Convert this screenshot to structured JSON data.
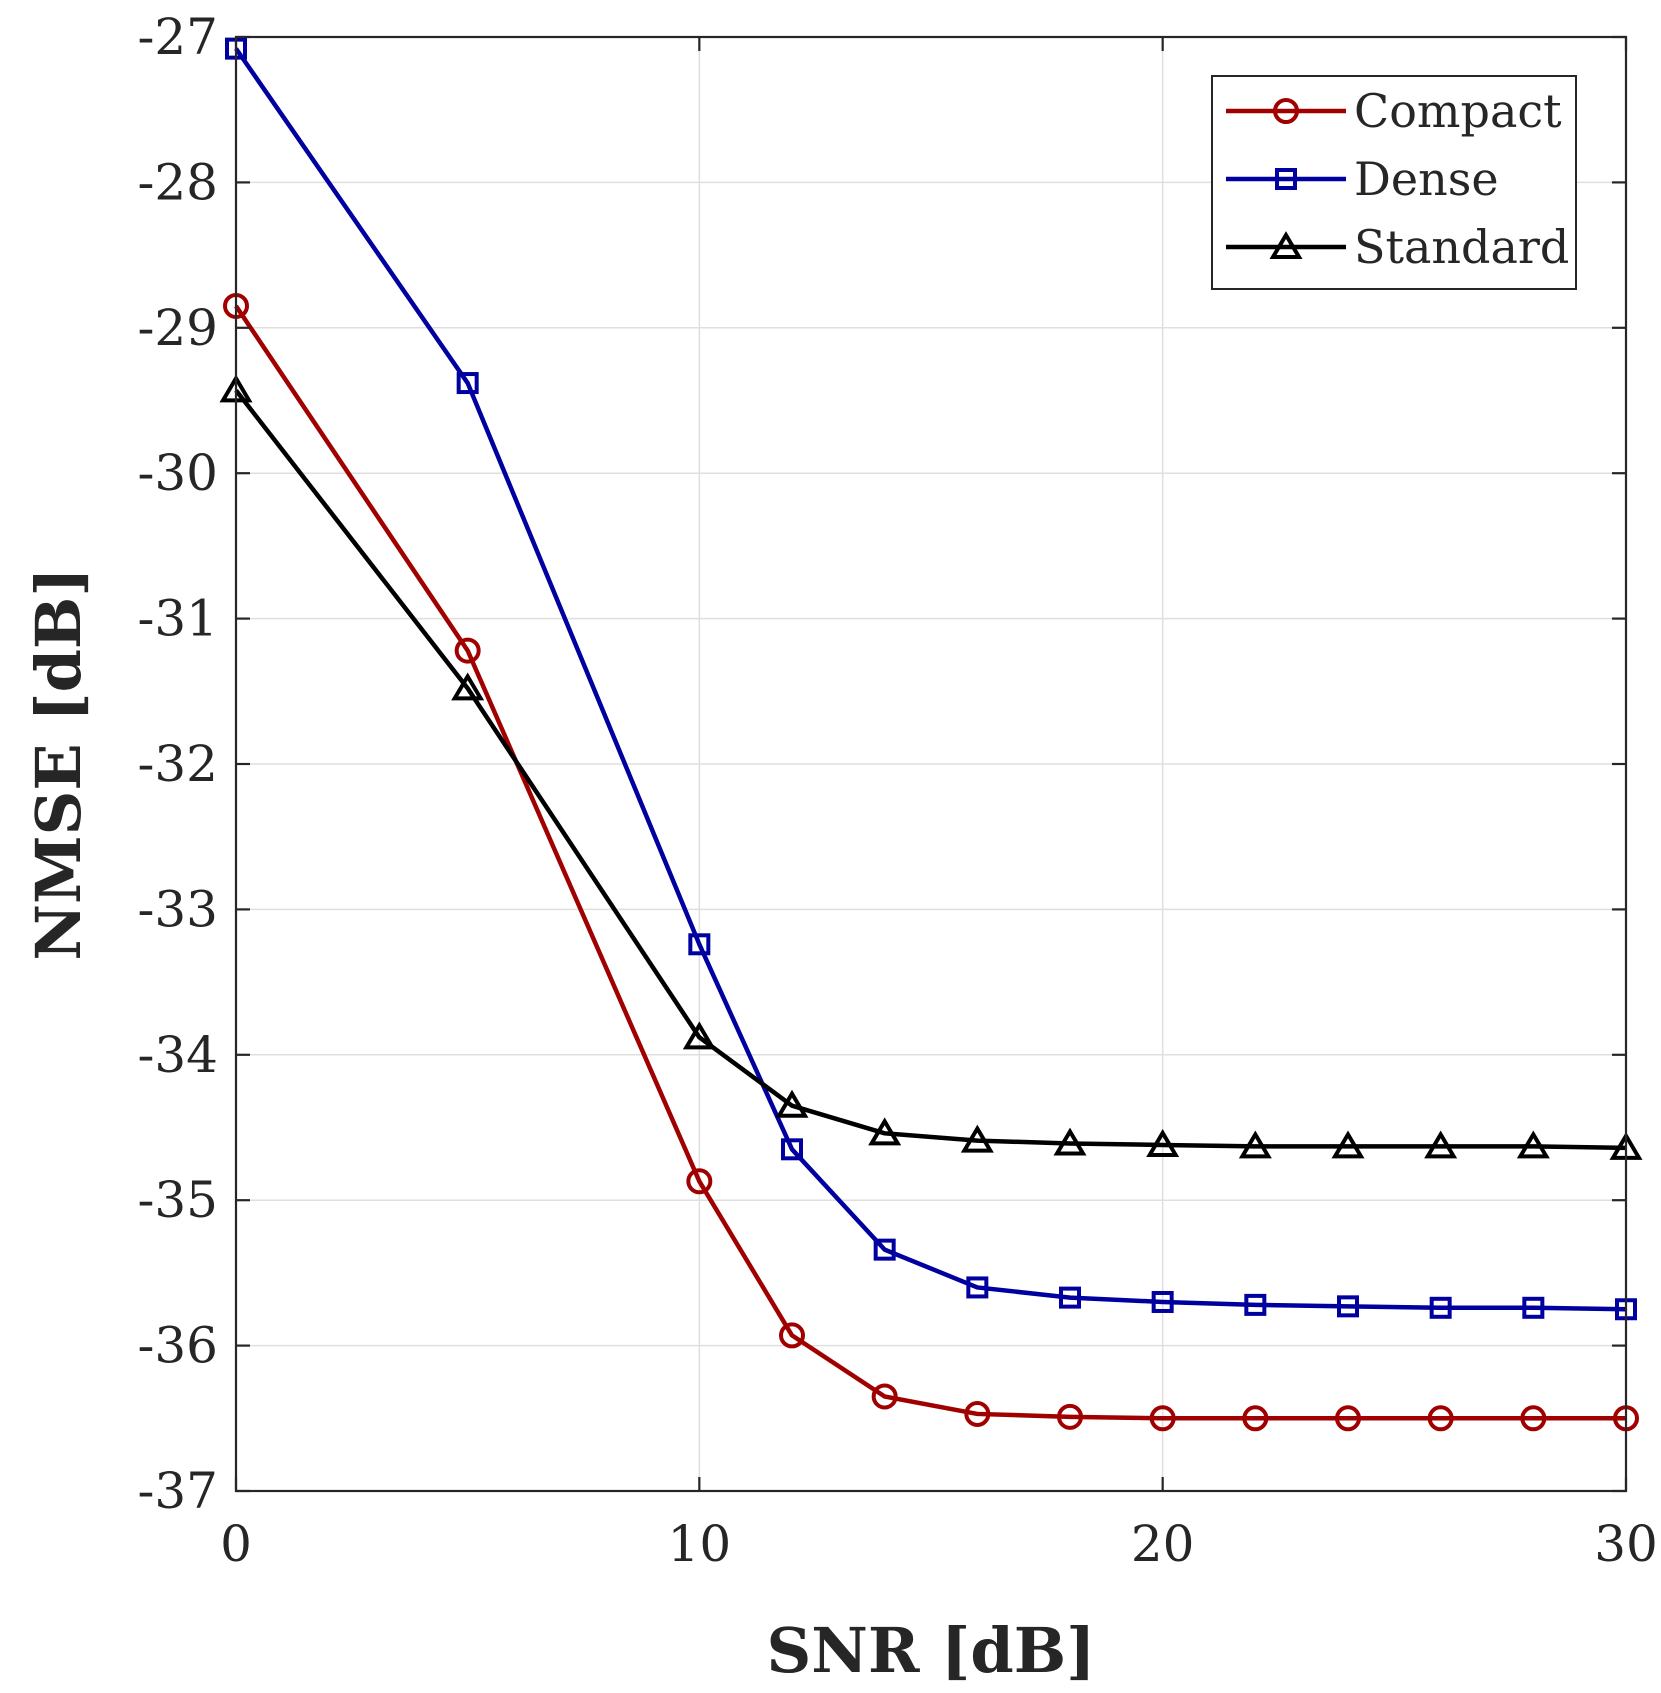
{
  "chart_data": {
    "type": "line",
    "title": "",
    "xlabel": "SNR [dB]",
    "ylabel": "NMSE [dB]",
    "xlim": [
      0,
      30
    ],
    "ylim": [
      -37,
      -27
    ],
    "xticks": [
      0,
      10,
      20,
      30
    ],
    "yticks": [
      -27,
      -28,
      -29,
      -30,
      -31,
      -32,
      -33,
      -34,
      -35,
      -36,
      -37
    ],
    "xtick_labels": [
      "0",
      "10",
      "20",
      "30"
    ],
    "ytick_labels": [
      "-27",
      "-28",
      "-29",
      "-30",
      "-31",
      "-32",
      "-33",
      "-34",
      "-35",
      "-36",
      "-37"
    ],
    "grid": true,
    "legend_position": "top-right",
    "series": [
      {
        "name": "Compact",
        "color": "#a00000",
        "marker": "circle",
        "x": [
          0,
          5,
          10,
          12,
          14,
          16,
          18,
          20,
          22,
          24,
          26,
          28,
          30
        ],
        "values": [
          -28.85,
          -31.22,
          -34.87,
          -35.93,
          -36.35,
          -36.47,
          -36.49,
          -36.5,
          -36.5,
          -36.5,
          -36.5,
          -36.5,
          -36.5
        ]
      },
      {
        "name": "Dense",
        "color": "#0000a0",
        "marker": "square",
        "x": [
          0,
          5,
          10,
          12,
          14,
          16,
          18,
          20,
          22,
          24,
          26,
          28,
          30
        ],
        "values": [
          -27.08,
          -29.38,
          -33.24,
          -34.65,
          -35.34,
          -35.6,
          -35.67,
          -35.7,
          -35.72,
          -35.73,
          -35.74,
          -35.74,
          -35.75
        ]
      },
      {
        "name": "Standard",
        "color": "#000000",
        "marker": "triangle",
        "x": [
          0,
          5,
          10,
          12,
          14,
          16,
          18,
          20,
          22,
          24,
          26,
          28,
          30
        ],
        "values": [
          -29.43,
          -31.48,
          -33.88,
          -34.35,
          -34.54,
          -34.59,
          -34.61,
          -34.62,
          -34.63,
          -34.63,
          -34.63,
          -34.63,
          -34.64
        ]
      }
    ]
  }
}
